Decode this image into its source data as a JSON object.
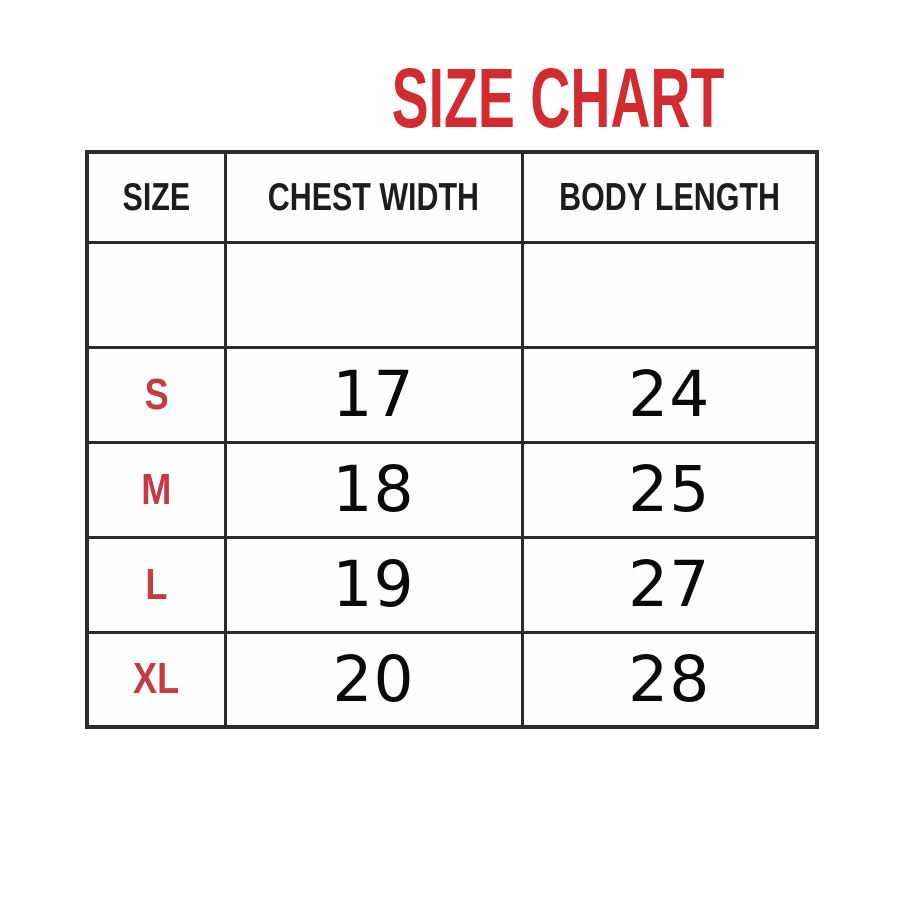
{
  "page_title": "SIZE CHART",
  "colors": {
    "title_red": "#d22c30",
    "size_red": "#c43b42",
    "border": "#2b2b2b",
    "header_text": "#1d1d1d",
    "number_text": "#0a0a0a",
    "background": "#ffffff"
  },
  "chart_data": {
    "type": "table",
    "title": "SIZE CHART",
    "columns": [
      "SIZE",
      "CHEST WIDTH",
      "BODY LENGTH"
    ],
    "rows": [
      [
        "S",
        "17",
        "24"
      ],
      [
        "M",
        "18",
        "25"
      ],
      [
        "L",
        "19",
        "27"
      ],
      [
        "XL",
        "20",
        "28"
      ]
    ],
    "layout_hints": {
      "blank_spacer_row_after_header": true,
      "size_column_color": "red",
      "title_color": "red"
    }
  }
}
